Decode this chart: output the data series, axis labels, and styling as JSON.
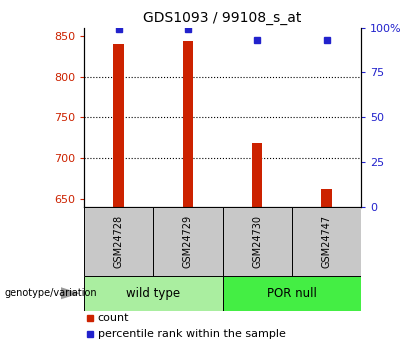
{
  "title": "GDS1093 / 99108_s_at",
  "samples": [
    "GSM24728",
    "GSM24729",
    "GSM24730",
    "GSM24747"
  ],
  "group_labels": [
    "wild type",
    "POR null"
  ],
  "count_values": [
    840,
    843,
    718,
    662
  ],
  "percentile_values": [
    99,
    99,
    93,
    93
  ],
  "ylim_left": [
    640,
    860
  ],
  "ylim_right": [
    0,
    100
  ],
  "yticks_left": [
    650,
    700,
    750,
    800,
    850
  ],
  "yticks_right": [
    0,
    25,
    50,
    75,
    100
  ],
  "ytick_labels_right": [
    "0",
    "25",
    "50",
    "75",
    "100%"
  ],
  "grid_yticks": [
    700,
    750,
    800
  ],
  "bar_color": "#CC2200",
  "dot_color": "#2222CC",
  "label_color_left": "#CC2200",
  "label_color_right": "#2222CC",
  "sample_box_color": "#C8C8C8",
  "wt_color": "#AAEEA0",
  "por_color": "#44EE44",
  "arrow_color": "#999999",
  "legend_count_color": "#CC2200",
  "legend_pct_color": "#2222CC",
  "bar_width": 0.15,
  "x_positions": [
    0.5,
    1.5,
    2.5,
    3.5
  ],
  "xlim": [
    0,
    4
  ],
  "title_fontsize": 10,
  "tick_fontsize": 8,
  "label_fontsize": 7,
  "group_fontsize": 8.5,
  "legend_fontsize": 8
}
